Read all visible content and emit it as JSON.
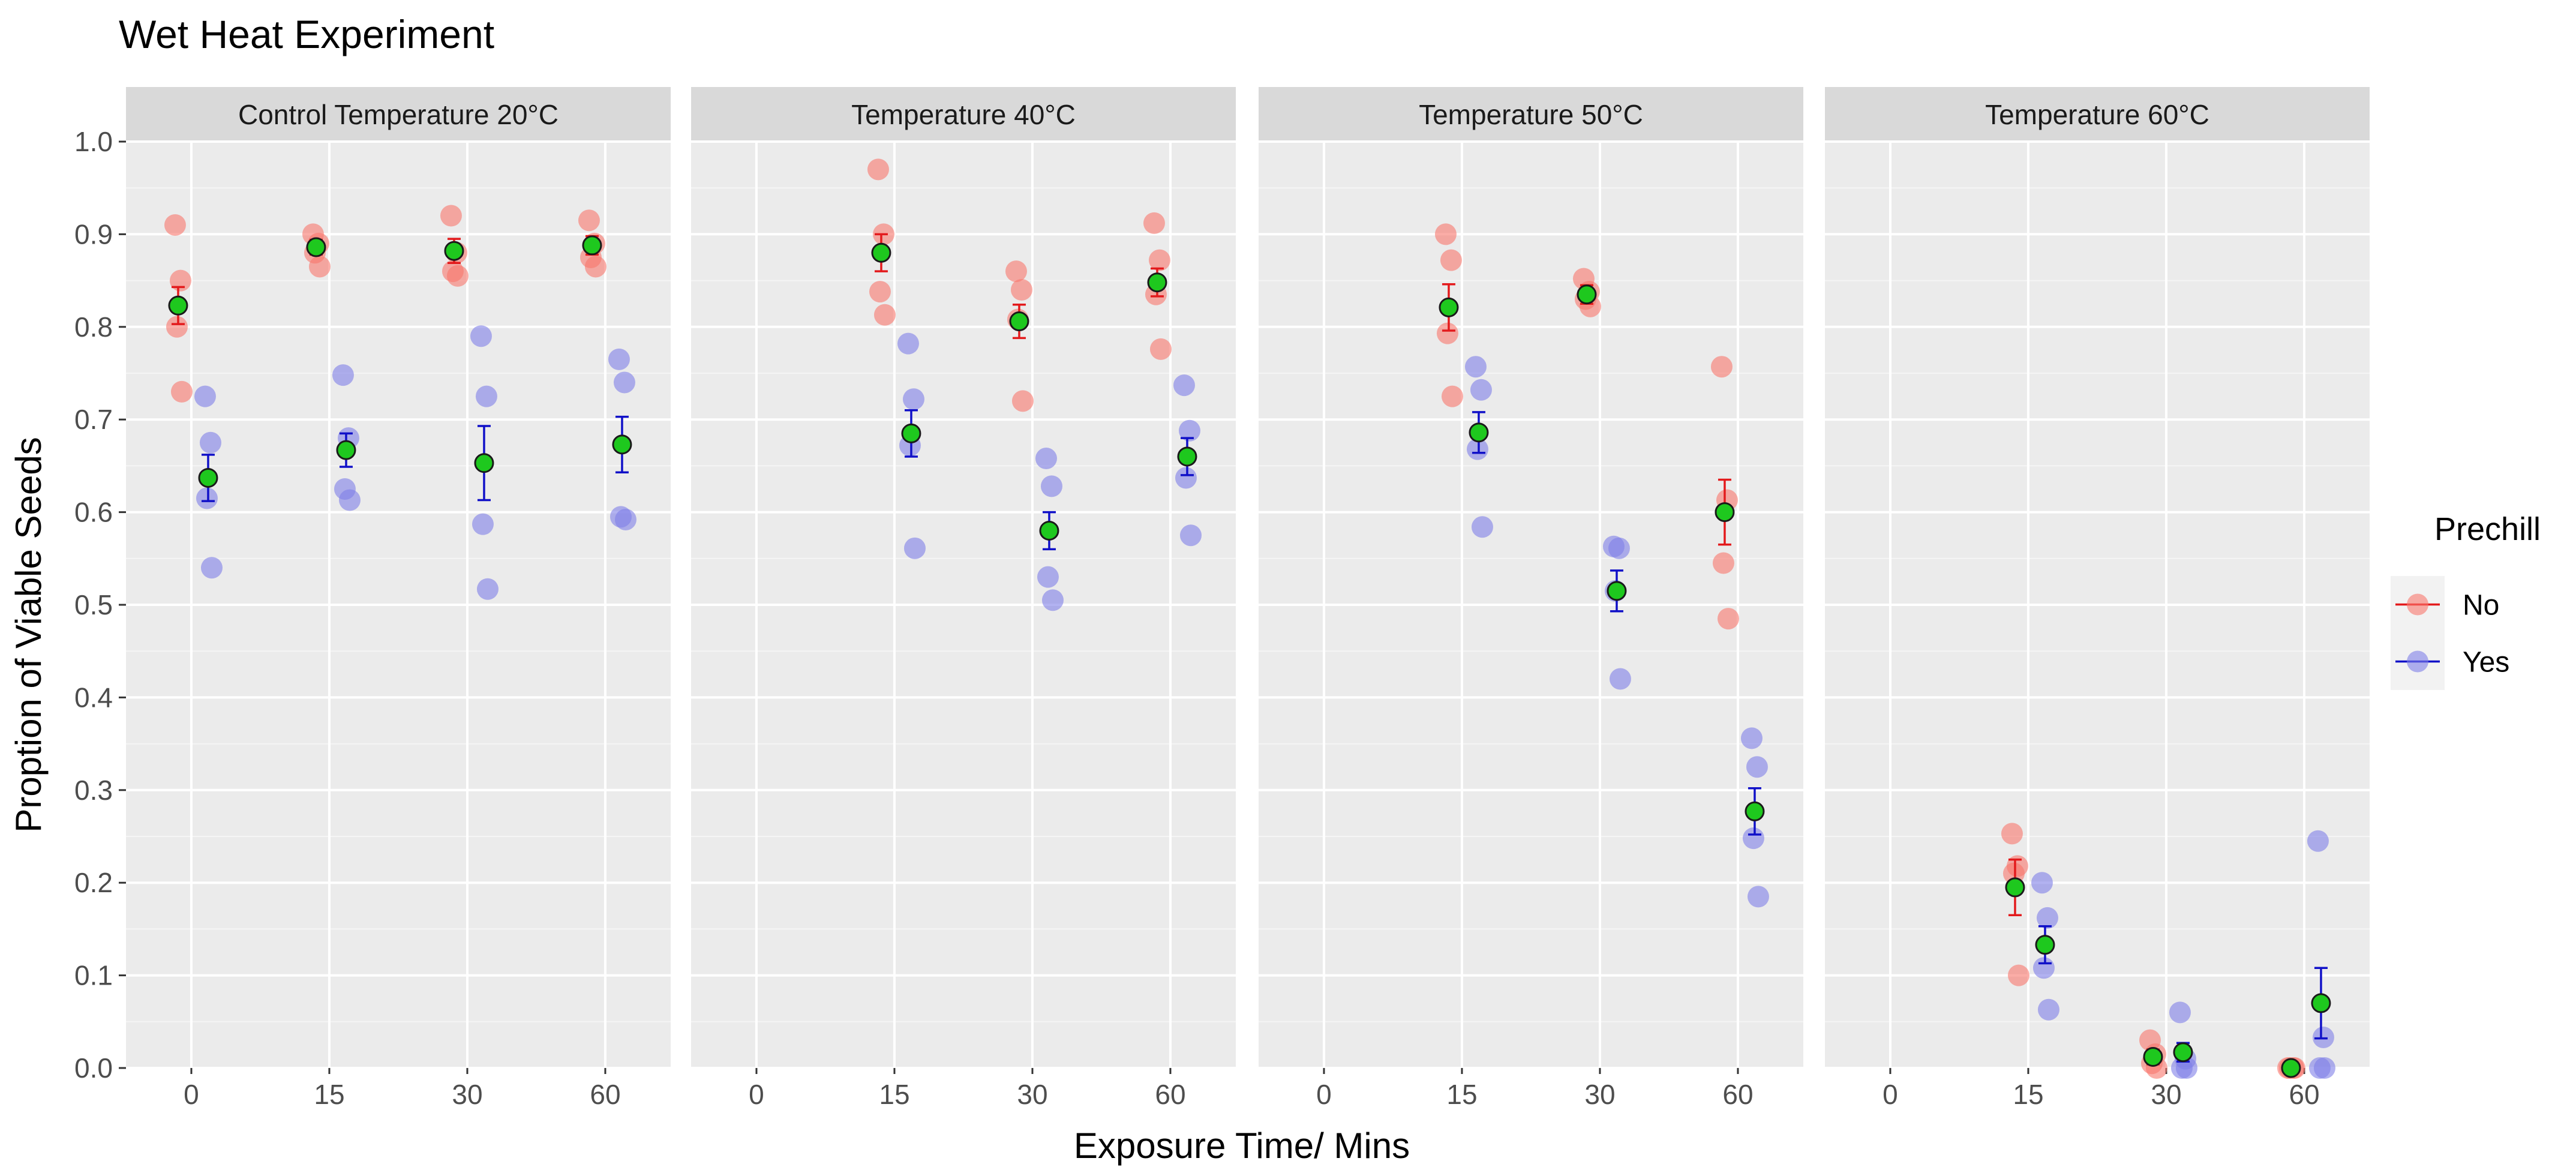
{
  "chart_data": {
    "type": "scatter",
    "title": "Wet Heat Experiment",
    "xlabel": "Exposure Time/ Mins",
    "ylabel": "Proption of Viable Seeds",
    "ylim": [
      0,
      1
    ],
    "yticks": [
      "0.0",
      "0.1",
      "0.2",
      "0.3",
      "0.4",
      "0.5",
      "0.6",
      "0.7",
      "0.8",
      "0.9",
      "1.0"
    ],
    "categories": [
      "0",
      "15",
      "30",
      "60"
    ],
    "legend": {
      "title": "Prechill",
      "position": "right",
      "entries": [
        {
          "label": "No",
          "color": "#f8766d",
          "bar_color": "#e31a1c"
        },
        {
          "label": "Yes",
          "color": "#7f7fe8",
          "bar_color": "#1010c8"
        }
      ]
    },
    "mean_marker_color": "#1ec81e",
    "panels": [
      {
        "label": "Control Temperature 20°C",
        "series": [
          {
            "name": "No",
            "points": [
              {
                "x": "0",
                "values": [
                  0.91,
                  0.85,
                  0.8,
                  0.73
                ],
                "mean": 0.823,
                "err": 0.02
              },
              {
                "x": "15",
                "values": [
                  0.9,
                  0.89,
                  0.88,
                  0.865
                ],
                "mean": 0.886,
                "err": 0.008
              },
              {
                "x": "30",
                "values": [
                  0.92,
                  0.88,
                  0.86,
                  0.855
                ],
                "mean": 0.882,
                "err": 0.013
              },
              {
                "x": "60",
                "values": [
                  0.915,
                  0.89,
                  0.875,
                  0.865
                ],
                "mean": 0.888,
                "err": 0.01
              }
            ]
          },
          {
            "name": "Yes",
            "points": [
              {
                "x": "0",
                "values": [
                  0.725,
                  0.675,
                  0.615,
                  0.54
                ],
                "mean": 0.637,
                "err": 0.025
              },
              {
                "x": "15",
                "values": [
                  0.748,
                  0.68,
                  0.625,
                  0.613
                ],
                "mean": 0.667,
                "err": 0.018
              },
              {
                "x": "30",
                "values": [
                  0.79,
                  0.725,
                  0.587,
                  0.517
                ],
                "mean": 0.653,
                "err": 0.04
              },
              {
                "x": "60",
                "values": [
                  0.765,
                  0.74,
                  0.595,
                  0.592
                ],
                "mean": 0.673,
                "err": 0.03
              }
            ]
          }
        ]
      },
      {
        "label": "Temperature 40°C",
        "series": [
          {
            "name": "No",
            "points": [
              {
                "x": "15",
                "values": [
                  0.97,
                  0.9,
                  0.838,
                  0.813
                ],
                "mean": 0.88,
                "err": 0.02
              },
              {
                "x": "30",
                "values": [
                  0.86,
                  0.84,
                  0.808,
                  0.72
                ],
                "mean": 0.806,
                "err": 0.018
              },
              {
                "x": "60",
                "values": [
                  0.912,
                  0.872,
                  0.835,
                  0.776
                ],
                "mean": 0.848,
                "err": 0.015
              }
            ]
          },
          {
            "name": "Yes",
            "points": [
              {
                "x": "15",
                "values": [
                  0.782,
                  0.722,
                  0.672,
                  0.561
                ],
                "mean": 0.685,
                "err": 0.025
              },
              {
                "x": "30",
                "values": [
                  0.658,
                  0.628,
                  0.53,
                  0.505
                ],
                "mean": 0.58,
                "err": 0.02
              },
              {
                "x": "60",
                "values": [
                  0.737,
                  0.688,
                  0.637,
                  0.575
                ],
                "mean": 0.66,
                "err": 0.02
              }
            ]
          }
        ]
      },
      {
        "label": "Temperature 50°C",
        "series": [
          {
            "name": "No",
            "points": [
              {
                "x": "15",
                "values": [
                  0.9,
                  0.872,
                  0.793,
                  0.725
                ],
                "mean": 0.821,
                "err": 0.025
              },
              {
                "x": "30",
                "values": [
                  0.852,
                  0.838,
                  0.83,
                  0.822
                ],
                "mean": 0.835,
                "err": 0.01
              },
              {
                "x": "60",
                "values": [
                  0.757,
                  0.613,
                  0.545,
                  0.485
                ],
                "mean": 0.6,
                "err": 0.035
              }
            ]
          },
          {
            "name": "Yes",
            "points": [
              {
                "x": "15",
                "values": [
                  0.757,
                  0.732,
                  0.668,
                  0.584
                ],
                "mean": 0.686,
                "err": 0.022
              },
              {
                "x": "30",
                "values": [
                  0.563,
                  0.561,
                  0.515,
                  0.42
                ],
                "mean": 0.515,
                "err": 0.022
              },
              {
                "x": "60",
                "values": [
                  0.356,
                  0.325,
                  0.248,
                  0.185
                ],
                "mean": 0.277,
                "err": 0.025
              }
            ]
          }
        ]
      },
      {
        "label": "Temperature 60°C",
        "series": [
          {
            "name": "No",
            "points": [
              {
                "x": "15",
                "values": [
                  0.253,
                  0.218,
                  0.21,
                  0.1
                ],
                "mean": 0.195,
                "err": 0.03
              },
              {
                "x": "30",
                "values": [
                  0.03,
                  0.015,
                  0.005,
                  0.0
                ],
                "mean": 0.012,
                "err": 0.008
              },
              {
                "x": "60",
                "values": [
                  0.0,
                  0.0,
                  0.0,
                  0.0
                ],
                "mean": 0.0,
                "err": 0.0
              }
            ]
          },
          {
            "name": "Yes",
            "points": [
              {
                "x": "15",
                "values": [
                  0.2,
                  0.162,
                  0.108,
                  0.063
                ],
                "mean": 0.133,
                "err": 0.02
              },
              {
                "x": "30",
                "values": [
                  0.06,
                  0.01,
                  0.0,
                  0.0
                ],
                "mean": 0.017,
                "err": 0.01
              },
              {
                "x": "60",
                "values": [
                  0.245,
                  0.033,
                  0.0,
                  0.0
                ],
                "mean": 0.07,
                "err": 0.038
              }
            ]
          }
        ]
      }
    ]
  }
}
